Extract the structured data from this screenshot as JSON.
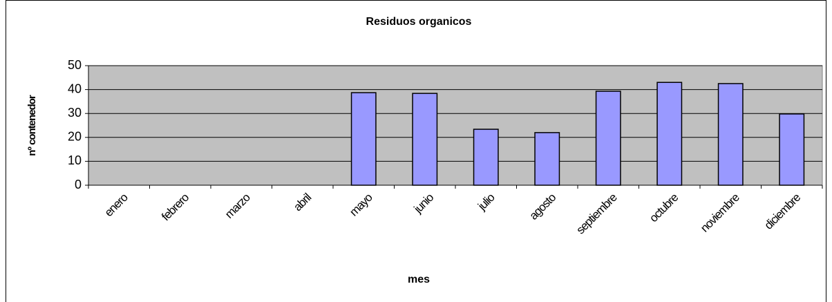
{
  "chart_data": {
    "type": "bar",
    "title": "Residuos organicos",
    "x_label": "mes",
    "y_label": "nº contenedor",
    "categories": [
      "enero",
      "febrero",
      "marzo",
      "abril",
      "mayo",
      "junio",
      "julio",
      "agosto",
      "septiembre",
      "octubre",
      "noviembre",
      "diciembre"
    ],
    "values": [
      null,
      null,
      null,
      null,
      38.7,
      38.4,
      23.4,
      22,
      39.3,
      43,
      42.5,
      29.8
    ],
    "color": "#9999ff",
    "ylim": [
      0,
      50
    ],
    "yticks": [
      0,
      10,
      20,
      30,
      40,
      50
    ],
    "grid": true
  }
}
